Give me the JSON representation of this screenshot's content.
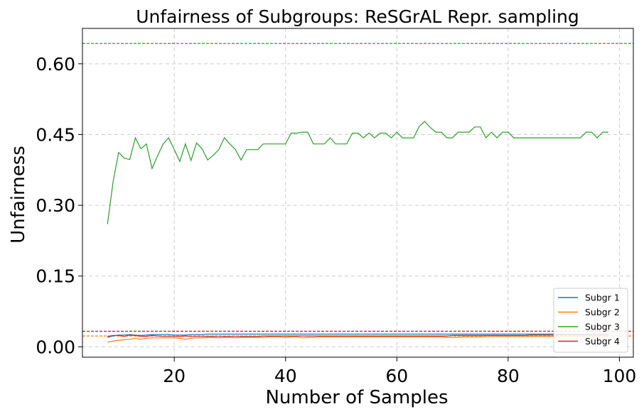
{
  "chart_data": {
    "type": "line",
    "title": "Unfairness of Subgroups: ReSGrAL Repr. sampling",
    "xlabel": "Number of Samples",
    "ylabel": "Unfairness",
    "xlim": [
      3.5,
      102.5
    ],
    "ylim": [
      -0.022,
      0.675
    ],
    "xticks": [
      20,
      40,
      60,
      80,
      100
    ],
    "yticks": [
      0.0,
      0.15,
      0.3,
      0.45,
      0.6
    ],
    "ytick_labels": [
      "0.00",
      "0.15",
      "0.30",
      "0.45",
      "0.60"
    ],
    "grid": true,
    "legend_position": "bottom-right",
    "x": [
      8,
      9,
      10,
      11,
      12,
      13,
      14,
      15,
      16,
      17,
      18,
      19,
      20,
      21,
      22,
      23,
      24,
      25,
      26,
      27,
      28,
      29,
      30,
      31,
      32,
      33,
      34,
      35,
      36,
      37,
      38,
      39,
      40,
      41,
      42,
      43,
      44,
      45,
      46,
      47,
      48,
      49,
      50,
      51,
      52,
      53,
      54,
      55,
      56,
      57,
      58,
      59,
      60,
      61,
      62,
      63,
      64,
      65,
      66,
      67,
      68,
      69,
      70,
      71,
      72,
      73,
      74,
      75,
      76,
      77,
      78,
      79,
      80,
      81,
      82,
      83,
      84,
      85,
      86,
      87,
      88,
      89,
      90,
      91,
      92,
      93,
      94,
      95,
      96,
      97,
      98
    ],
    "series": [
      {
        "name": "Subgr 1",
        "color": "#1f77b4",
        "values": [
          0.02,
          0.023,
          0.025,
          0.025,
          0.026,
          0.025,
          0.024,
          0.025,
          0.026,
          0.026,
          0.026,
          0.026,
          0.025,
          0.025,
          0.025,
          0.026,
          0.026,
          0.026,
          0.027,
          0.027,
          0.027,
          0.027,
          0.027,
          0.027,
          0.027,
          0.027,
          0.027,
          0.027,
          0.027,
          0.027,
          0.027,
          0.027,
          0.027,
          0.027,
          0.027,
          0.027,
          0.027,
          0.027,
          0.027,
          0.027,
          0.027,
          0.027,
          0.027,
          0.027,
          0.027,
          0.027,
          0.027,
          0.027,
          0.027,
          0.027,
          0.027,
          0.027,
          0.027,
          0.027,
          0.027,
          0.027,
          0.027,
          0.027,
          0.027,
          0.027,
          0.027,
          0.027,
          0.027,
          0.027,
          0.027,
          0.027,
          0.027,
          0.027,
          0.027,
          0.027,
          0.027,
          0.027,
          0.027,
          0.027,
          0.027,
          0.027,
          0.027,
          0.027,
          0.027,
          0.027,
          0.027,
          0.027,
          0.027,
          0.027,
          0.027,
          0.027,
          0.027,
          0.027,
          0.027,
          0.027,
          0.027
        ]
      },
      {
        "name": "Subgr 2",
        "color": "#ff7f0e",
        "values": [
          0.01,
          0.012,
          0.014,
          0.015,
          0.016,
          0.018,
          0.016,
          0.018,
          0.019,
          0.019,
          0.019,
          0.019,
          0.019,
          0.018,
          0.016,
          0.018,
          0.019,
          0.019,
          0.02,
          0.02,
          0.019,
          0.02,
          0.02,
          0.019,
          0.02,
          0.02,
          0.02,
          0.02,
          0.02,
          0.021,
          0.021,
          0.021,
          0.02,
          0.021,
          0.021,
          0.019,
          0.02,
          0.02,
          0.021,
          0.021,
          0.021,
          0.021,
          0.021,
          0.021,
          0.021,
          0.021,
          0.021,
          0.021,
          0.021,
          0.021,
          0.021,
          0.021,
          0.021,
          0.021,
          0.021,
          0.021,
          0.021,
          0.021,
          0.021,
          0.021,
          0.021,
          0.02,
          0.02,
          0.02,
          0.021,
          0.021,
          0.021,
          0.021,
          0.022,
          0.022,
          0.022,
          0.022,
          0.022,
          0.022,
          0.022,
          0.022,
          0.022,
          0.022,
          0.022,
          0.022,
          0.022,
          0.022,
          0.022,
          0.022,
          0.022,
          0.022,
          0.022,
          0.022,
          0.022,
          0.022,
          0.022
        ]
      },
      {
        "name": "Subgr 3",
        "color": "#2ca02c",
        "values": [
          0.26,
          0.35,
          0.412,
          0.4,
          0.397,
          0.443,
          0.42,
          0.43,
          0.378,
          0.405,
          0.43,
          0.443,
          0.418,
          0.393,
          0.43,
          0.395,
          0.432,
          0.42,
          0.396,
          0.406,
          0.418,
          0.443,
          0.43,
          0.418,
          0.396,
          0.418,
          0.418,
          0.418,
          0.43,
          0.43,
          0.43,
          0.43,
          0.43,
          0.453,
          0.453,
          0.455,
          0.455,
          0.43,
          0.43,
          0.43,
          0.443,
          0.43,
          0.43,
          0.43,
          0.453,
          0.453,
          0.443,
          0.453,
          0.443,
          0.453,
          0.453,
          0.443,
          0.455,
          0.443,
          0.443,
          0.443,
          0.467,
          0.478,
          0.465,
          0.455,
          0.455,
          0.443,
          0.443,
          0.455,
          0.455,
          0.455,
          0.466,
          0.466,
          0.443,
          0.455,
          0.443,
          0.455,
          0.455,
          0.443,
          0.443,
          0.443,
          0.443,
          0.443,
          0.443,
          0.443,
          0.443,
          0.443,
          0.443,
          0.443,
          0.443,
          0.443,
          0.455,
          0.455,
          0.443,
          0.455,
          0.455
        ]
      },
      {
        "name": "Subgr 4",
        "color": "#d62728",
        "values": [
          0.022,
          0.024,
          0.024,
          0.022,
          0.025,
          0.024,
          0.022,
          0.022,
          0.024,
          0.023,
          0.022,
          0.022,
          0.022,
          0.022,
          0.023,
          0.022,
          0.022,
          0.022,
          0.022,
          0.022,
          0.022,
          0.022,
          0.022,
          0.022,
          0.022,
          0.022,
          0.022,
          0.022,
          0.023,
          0.023,
          0.023,
          0.023,
          0.023,
          0.023,
          0.023,
          0.023,
          0.023,
          0.023,
          0.023,
          0.023,
          0.023,
          0.023,
          0.023,
          0.023,
          0.023,
          0.023,
          0.023,
          0.023,
          0.023,
          0.023,
          0.023,
          0.023,
          0.023,
          0.023,
          0.023,
          0.023,
          0.023,
          0.023,
          0.023,
          0.023,
          0.023,
          0.023,
          0.024,
          0.024,
          0.024,
          0.024,
          0.024,
          0.024,
          0.024,
          0.024,
          0.024,
          0.024,
          0.024,
          0.024,
          0.024,
          0.024,
          0.025,
          0.025,
          0.025,
          0.025,
          0.025,
          0.025,
          0.025,
          0.025,
          0.025,
          0.025,
          0.025,
          0.025,
          0.025,
          0.025,
          0.025
        ]
      }
    ],
    "reference_lines": [
      {
        "color": "#2ca02c",
        "y": 0.643
      },
      {
        "color": "#1f77b4",
        "y": 0.033
      },
      {
        "color": "#d62728",
        "y": 0.033
      },
      {
        "color": "#ff7f0e",
        "y": 0.023
      }
    ]
  }
}
